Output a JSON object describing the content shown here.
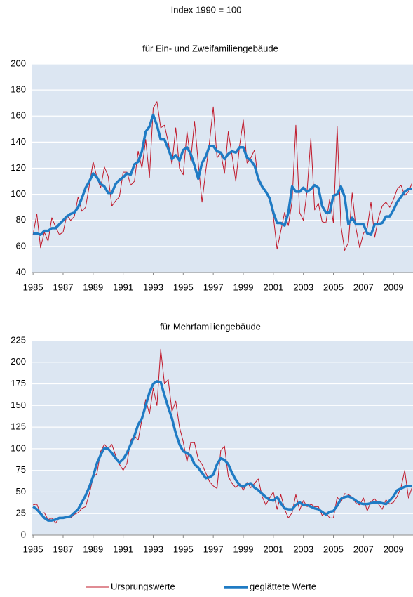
{
  "title": "Index 1990 = 100",
  "chart_data": [
    {
      "type": "line",
      "title": "für Ein- und Zweifamiliengebäude",
      "x": [
        1985,
        1985.25,
        1985.5,
        1985.75,
        1986,
        1986.25,
        1986.5,
        1986.75,
        1987,
        1987.25,
        1987.5,
        1987.75,
        1988,
        1988.25,
        1988.5,
        1988.75,
        1989,
        1989.25,
        1989.5,
        1989.75,
        1990,
        1990.25,
        1990.5,
        1990.75,
        1991,
        1991.25,
        1991.5,
        1991.75,
        1992,
        1992.25,
        1992.5,
        1992.75,
        1993,
        1993.25,
        1993.5,
        1993.75,
        1994,
        1994.25,
        1994.5,
        1994.75,
        1995,
        1995.25,
        1995.5,
        1995.75,
        1996,
        1996.25,
        1996.5,
        1996.75,
        1997,
        1997.25,
        1997.5,
        1997.75,
        1998,
        1998.25,
        1998.5,
        1998.75,
        1999,
        1999.25,
        1999.5,
        1999.75,
        2000,
        2000.25,
        2000.5,
        2000.75,
        2001,
        2001.25,
        2001.5,
        2001.75,
        2002,
        2002.25,
        2002.5,
        2002.75,
        2003,
        2003.25,
        2003.5,
        2003.75,
        2004,
        2004.25,
        2004.5,
        2004.75,
        2005,
        2005.25,
        2005.5,
        2005.75,
        2006,
        2006.25,
        2006.5,
        2006.75,
        2007,
        2007.25,
        2007.5,
        2007.75,
        2008,
        2008.25,
        2008.5,
        2008.75,
        2009,
        2009.25,
        2009.5,
        2009.75,
        2010,
        2010.25
      ],
      "xlim": [
        1984.9,
        2010.3
      ],
      "xticks": [
        1985,
        1987,
        1989,
        1991,
        1993,
        1995,
        1997,
        1999,
        2001,
        2003,
        2005,
        2007,
        2009
      ],
      "ylim": [
        40,
        200
      ],
      "yticks": [
        40,
        60,
        80,
        100,
        120,
        140,
        160,
        180,
        200
      ],
      "series": [
        {
          "name": "Ursprungswerte",
          "color": "#c0182a",
          "values": [
            69,
            85,
            59,
            71,
            64,
            82,
            75,
            69,
            71,
            84,
            80,
            83,
            98,
            87,
            90,
            107,
            125,
            113,
            105,
            121,
            114,
            91,
            95,
            98,
            117,
            117,
            107,
            110,
            133,
            120,
            142,
            113,
            166,
            171,
            151,
            153,
            140,
            123,
            151,
            120,
            115,
            148,
            126,
            156,
            124,
            94,
            118,
            140,
            167,
            128,
            132,
            116,
            148,
            130,
            110,
            137,
            157,
            124,
            128,
            134,
            110,
            105,
            102,
            95,
            83,
            58,
            72,
            86,
            76,
            95,
            153,
            86,
            80,
            103,
            143,
            88,
            93,
            79,
            78,
            96,
            78,
            152,
            76,
            57,
            63,
            101,
            74,
            59,
            70,
            74,
            94,
            67,
            82,
            91,
            94,
            90,
            96,
            104,
            107,
            99,
            102,
            109
          ]
        },
        {
          "name": "geglättete Werte",
          "color": "#1f7bc4",
          "values": [
            70,
            70,
            69,
            72,
            72,
            74,
            74,
            77,
            80,
            83,
            85,
            86,
            90,
            97,
            105,
            110,
            116,
            113,
            108,
            106,
            101,
            101,
            108,
            111,
            113,
            116,
            115,
            123,
            125,
            133,
            148,
            152,
            161,
            153,
            142,
            142,
            135,
            127,
            130,
            126,
            134,
            136,
            131,
            122,
            112,
            124,
            129,
            137,
            137,
            133,
            132,
            127,
            131,
            133,
            132,
            136,
            136,
            128,
            126,
            122,
            112,
            106,
            102,
            97,
            86,
            78,
            78,
            76,
            86,
            106,
            102,
            102,
            105,
            102,
            104,
            107,
            105,
            91,
            86,
            86,
            99,
            100,
            106,
            98,
            77,
            82,
            77,
            77,
            77,
            70,
            69,
            77,
            77,
            78,
            83,
            83,
            88,
            94,
            98,
            102,
            104,
            104
          ]
        }
      ]
    },
    {
      "type": "line",
      "title": "für Mehrfamiliengebäude",
      "x": [
        1985,
        1985.25,
        1985.5,
        1985.75,
        1986,
        1986.25,
        1986.5,
        1986.75,
        1987,
        1987.25,
        1987.5,
        1987.75,
        1988,
        1988.25,
        1988.5,
        1988.75,
        1989,
        1989.25,
        1989.5,
        1989.75,
        1990,
        1990.25,
        1990.5,
        1990.75,
        1991,
        1991.25,
        1991.5,
        1991.75,
        1992,
        1992.25,
        1992.5,
        1992.75,
        1993,
        1993.25,
        1993.5,
        1993.75,
        1994,
        1994.25,
        1994.5,
        1994.75,
        1995,
        1995.25,
        1995.5,
        1995.75,
        1996,
        1996.25,
        1996.5,
        1996.75,
        1997,
        1997.25,
        1997.5,
        1997.75,
        1998,
        1998.25,
        1998.5,
        1998.75,
        1999,
        1999.25,
        1999.5,
        1999.75,
        2000,
        2000.25,
        2000.5,
        2000.75,
        2001,
        2001.25,
        2001.5,
        2001.75,
        2002,
        2002.25,
        2002.5,
        2002.75,
        2003,
        2003.25,
        2003.5,
        2003.75,
        2004,
        2004.25,
        2004.5,
        2004.75,
        2005,
        2005.25,
        2005.5,
        2005.75,
        2006,
        2006.25,
        2006.5,
        2006.75,
        2007,
        2007.25,
        2007.5,
        2007.75,
        2008,
        2008.25,
        2008.5,
        2008.75,
        2009,
        2009.25,
        2009.5,
        2009.75,
        2010,
        2010.25
      ],
      "xlim": [
        1984.9,
        2010.3
      ],
      "xticks": [
        1985,
        1987,
        1989,
        1991,
        1993,
        1995,
        1997,
        1999,
        2001,
        2003,
        2005,
        2007,
        2009
      ],
      "ylim": [
        0,
        225
      ],
      "yticks": [
        0,
        25,
        50,
        75,
        100,
        125,
        150,
        175,
        200,
        225
      ],
      "series": [
        {
          "name": "Ursprungswerte",
          "color": "#c0182a",
          "values": [
            35,
            36,
            25,
            26,
            18,
            20,
            14,
            20,
            21,
            20,
            20,
            24,
            26,
            31,
            33,
            48,
            67,
            71,
            97,
            105,
            100,
            105,
            92,
            82,
            75,
            83,
            110,
            115,
            110,
            134,
            157,
            140,
            170,
            150,
            215,
            175,
            180,
            143,
            155,
            125,
            108,
            85,
            107,
            107,
            88,
            82,
            72,
            62,
            57,
            54,
            98,
            103,
            68,
            60,
            55,
            60,
            52,
            61,
            55,
            60,
            65,
            45,
            35,
            43,
            50,
            30,
            47,
            30,
            20,
            26,
            47,
            29,
            40,
            33,
            36,
            33,
            33,
            23,
            26,
            20,
            20,
            44,
            38,
            48,
            47,
            44,
            37,
            35,
            43,
            28,
            39,
            42,
            36,
            30,
            41,
            36,
            38,
            45,
            55,
            75,
            43,
            56
          ]
        },
        {
          "name": "geglättete Werte",
          "color": "#1f7bc4",
          "values": [
            33,
            30,
            25,
            20,
            17,
            17,
            18,
            20,
            20,
            21,
            22,
            26,
            30,
            38,
            46,
            56,
            68,
            83,
            93,
            101,
            100,
            95,
            89,
            84,
            88,
            95,
            105,
            115,
            128,
            135,
            150,
            165,
            175,
            178,
            177,
            162,
            148,
            135,
            118,
            105,
            97,
            95,
            92,
            82,
            78,
            72,
            66,
            67,
            70,
            82,
            89,
            87,
            82,
            72,
            64,
            58,
            56,
            59,
            60,
            55,
            52,
            48,
            44,
            41,
            40,
            44,
            37,
            31,
            30,
            30,
            35,
            38,
            35,
            35,
            33,
            31,
            30,
            27,
            24,
            27,
            28,
            34,
            42,
            44,
            45,
            43,
            40,
            37,
            36,
            36,
            37,
            38,
            38,
            37,
            36,
            40,
            45,
            52,
            54,
            56,
            57,
            57
          ]
        }
      ]
    }
  ]
}
